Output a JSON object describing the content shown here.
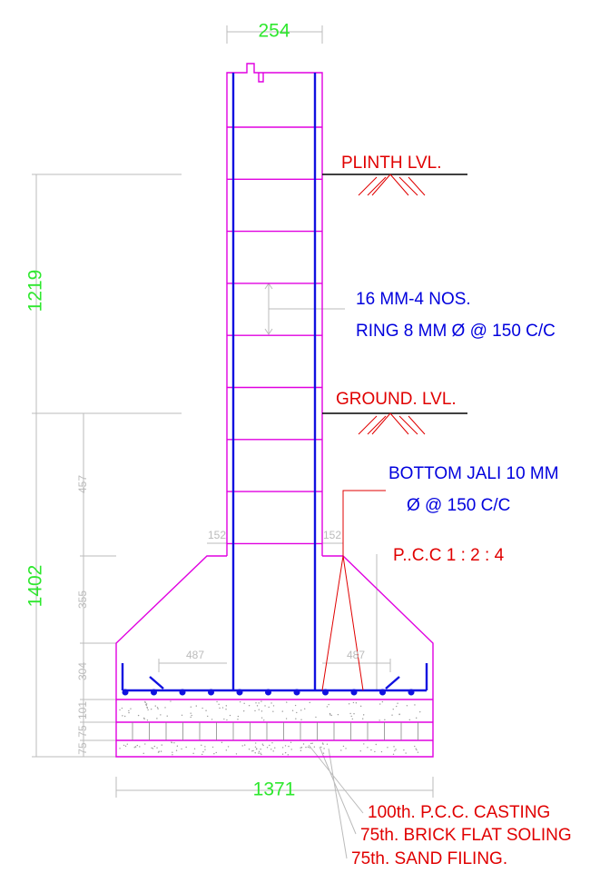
{
  "top_dimension": "254",
  "plinth_label": "PLINTH  LVL.",
  "left_dimensions": [
    "1219",
    "1402"
  ],
  "bar_note": [
    "16 MM-4 NOS.",
    "RING 8 MM Ø @ 150 C/C"
  ],
  "ground_label": "GROUND. LVL.",
  "jali_note": [
    "BOTTOM JALI 10 MM",
    "Ø  @  150 C/C"
  ],
  "offsets": [
    "152",
    "152"
  ],
  "pcc_note": "P..C.C 1 : 2 : 4",
  "inner_dimensions": [
    "457",
    "355",
    "304",
    "101",
    "75",
    "75"
  ],
  "mesh_dimensions": [
    "487",
    "487"
  ],
  "bottom_dimension": "1371",
  "layers": [
    "100th. P.C.C. CASTING",
    "75th. BRICK FLAT SOLING",
    "75th. SAND FILING."
  ]
}
